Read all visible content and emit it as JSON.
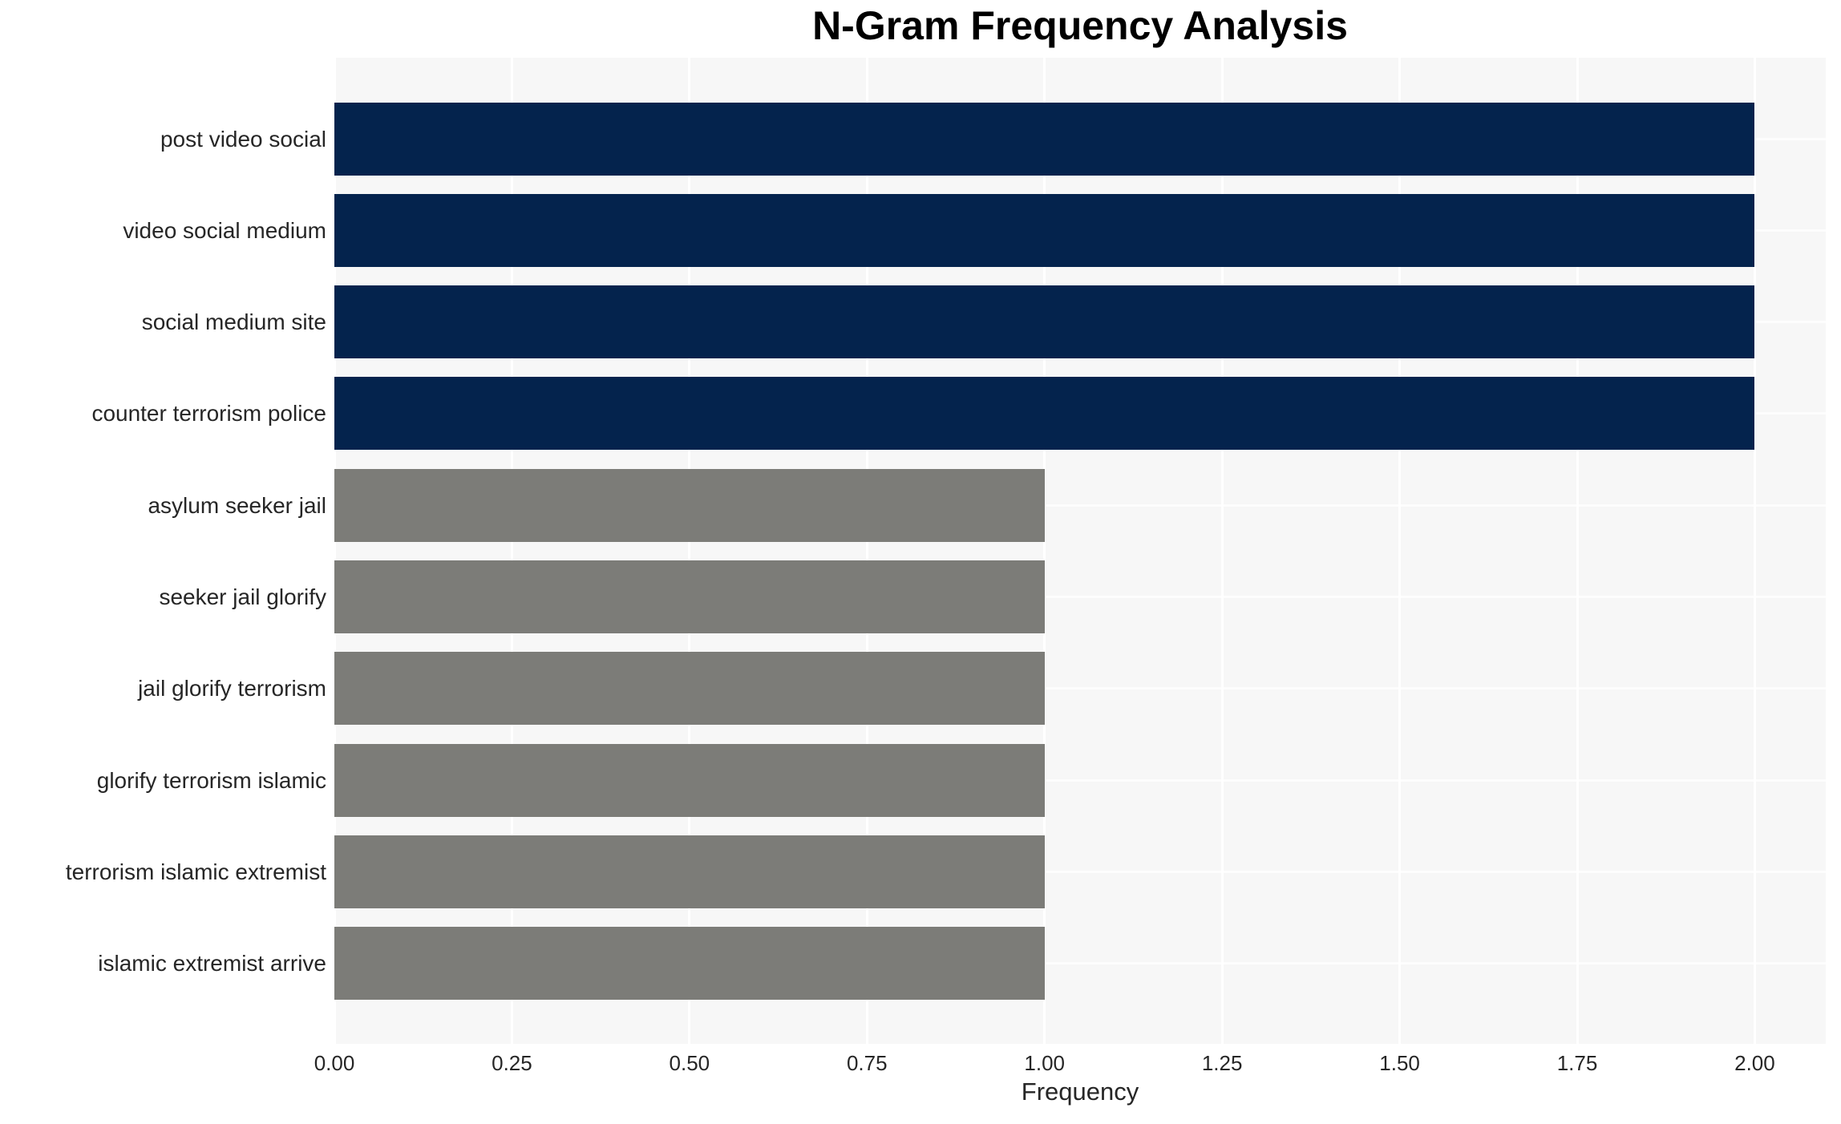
{
  "chart_data": {
    "type": "bar",
    "orientation": "horizontal",
    "title": "N-Gram Frequency Analysis",
    "xlabel": "Frequency",
    "ylabel": "",
    "categories": [
      "post video social",
      "video social medium",
      "social medium site",
      "counter terrorism police",
      "asylum seeker jail",
      "seeker jail glorify",
      "jail glorify terrorism",
      "glorify terrorism islamic",
      "terrorism islamic extremist",
      "islamic extremist arrive"
    ],
    "values": [
      2,
      2,
      2,
      2,
      1,
      1,
      1,
      1,
      1,
      1
    ],
    "bar_colors": [
      "#04234d",
      "#04234d",
      "#04234d",
      "#04234d",
      "#7c7c78",
      "#7c7c78",
      "#7c7c78",
      "#7c7c78",
      "#7c7c78",
      "#7c7c78"
    ],
    "xlim": [
      0,
      2.1
    ],
    "xticks": [
      0.0,
      0.25,
      0.5,
      0.75,
      1.0,
      1.25,
      1.5,
      1.75,
      2.0
    ],
    "xtick_labels": [
      "0.00",
      "0.25",
      "0.50",
      "0.75",
      "1.00",
      "1.25",
      "1.50",
      "1.75",
      "2.00"
    ],
    "grid": "on",
    "legend": "none",
    "colors": {
      "bar_high": "#04234d",
      "bar_low": "#7c7c78",
      "plot_background": "#f7f7f7",
      "grid_line": "#ffffff",
      "text": "#262626",
      "title": "#000000"
    }
  }
}
